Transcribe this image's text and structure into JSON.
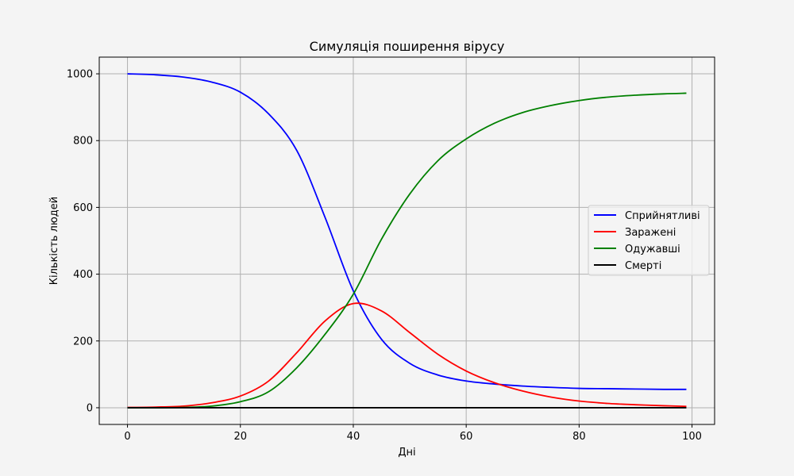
{
  "chart_data": {
    "type": "line",
    "title": "Симуляція поширення вірусу",
    "xlabel": "Дні",
    "ylabel": "Кількість людей",
    "xlim": [
      -5,
      104
    ],
    "ylim": [
      -50,
      1050
    ],
    "xticks": [
      0,
      20,
      40,
      60,
      80,
      100
    ],
    "yticks": [
      0,
      200,
      400,
      600,
      800,
      1000
    ],
    "grid": true,
    "legend_position": "center-right",
    "x": [
      0,
      5,
      10,
      15,
      20,
      25,
      30,
      35,
      40,
      45,
      50,
      55,
      60,
      65,
      70,
      75,
      80,
      85,
      90,
      95,
      99
    ],
    "series": [
      {
        "name": "Сприйнятливі",
        "color": "#0000ff",
        "values": [
          1000,
          997,
          990,
          975,
          945,
          880,
          770,
          570,
          350,
          205,
          133,
          98,
          80,
          71,
          65,
          61,
          58,
          57,
          56,
          55,
          55
        ]
      },
      {
        "name": "Заражені",
        "color": "#ff0000",
        "values": [
          1,
          2,
          5,
          15,
          35,
          80,
          165,
          260,
          312,
          290,
          225,
          160,
          110,
          75,
          50,
          32,
          20,
          13,
          9,
          6,
          4
        ]
      },
      {
        "name": "Одужавші",
        "color": "#008000",
        "values": [
          0,
          0,
          1,
          5,
          18,
          48,
          120,
          220,
          340,
          505,
          640,
          740,
          805,
          852,
          884,
          905,
          920,
          930,
          936,
          940,
          942
        ]
      },
      {
        "name": "Смерті",
        "color": "#000000",
        "values": [
          0,
          0,
          0,
          0,
          0,
          0,
          0,
          0,
          0,
          0,
          0,
          0,
          0,
          0,
          0,
          0,
          0,
          0,
          0,
          0,
          0
        ]
      }
    ]
  }
}
